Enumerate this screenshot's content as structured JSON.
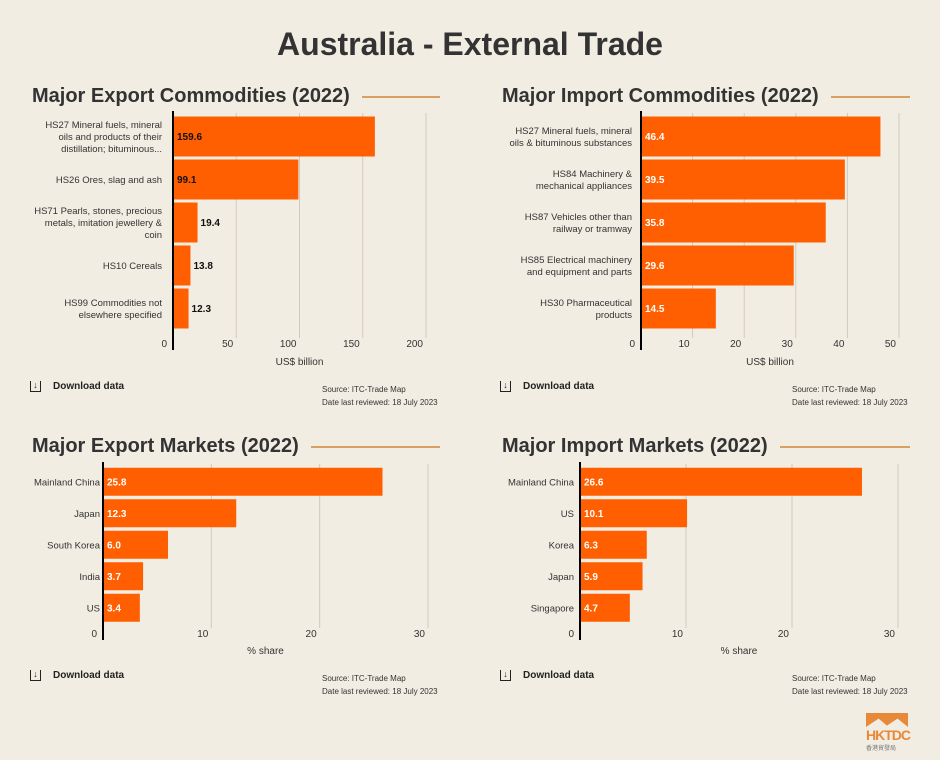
{
  "title": "Australia - External Trade",
  "download_label": "Download data",
  "source": "Source: ITC-Trade Map",
  "reviewed": "Date last reviewed: 18 July 2023",
  "logo": {
    "text": "HKTDC",
    "chinese": "香港貿發局"
  },
  "colors": {
    "bar": "#ff5f00",
    "grid": "#cfcac0",
    "axis": "#000000"
  },
  "chart_data": [
    {
      "type": "bar",
      "title": "Major Export Commodities (2022)",
      "xlabel": "US$ billion",
      "xlim": [
        0,
        200
      ],
      "ticks": [
        0,
        50,
        100,
        150,
        200
      ],
      "categories": [
        [
          "HS27 Mineral fuels, mineral",
          "oils and products of their",
          "distillation; bituminous..."
        ],
        [
          "HS26 Ores, slag and ash"
        ],
        [
          "HS71 Pearls, stones, precious",
          "metals, imitation jewellery &",
          "coin"
        ],
        [
          "HS10 Cereals"
        ],
        [
          "HS99 Commodities not",
          "elsewhere specified"
        ]
      ],
      "values": [
        159.6,
        99.1,
        19.4,
        13.8,
        12.3
      ],
      "labels": [
        "159.6",
        "99.1",
        "19.4",
        "13.8",
        "12.3"
      ],
      "label_color": "#111111"
    },
    {
      "type": "bar",
      "title": "Major Import Commodities (2022)",
      "xlabel": "US$ billion",
      "xlim": [
        0,
        50
      ],
      "ticks": [
        0,
        10,
        20,
        30,
        40,
        50
      ],
      "categories": [
        [
          "HS27 Mineral fuels, mineral",
          "oils & bituminous substances"
        ],
        [
          "HS84 Machinery &",
          "mechanical appliances"
        ],
        [
          "HS87 Vehicles other than",
          "railway or tramway"
        ],
        [
          "HS85 Electrical machinery",
          "and equipment and parts"
        ],
        [
          "HS30 Pharmaceutical",
          "products"
        ]
      ],
      "values": [
        46.4,
        39.5,
        35.8,
        29.6,
        14.5
      ],
      "labels": [
        "46.4",
        "39.5",
        "35.8",
        "29.6",
        "14.5"
      ],
      "label_color": "#ffffff"
    },
    {
      "type": "bar",
      "title": "Major Export Markets (2022)",
      "xlabel": "% share",
      "xlim": [
        0,
        30
      ],
      "ticks": [
        0,
        10,
        20,
        30
      ],
      "categories": [
        [
          "Mainland China"
        ],
        [
          "Japan"
        ],
        [
          "South Korea"
        ],
        [
          "India"
        ],
        [
          "US"
        ]
      ],
      "values": [
        25.8,
        12.3,
        6.0,
        3.7,
        3.4
      ],
      "labels": [
        "25.8",
        "12.3",
        "6.0",
        "3.7",
        "3.4"
      ],
      "label_color": "#ffffff"
    },
    {
      "type": "bar",
      "title": "Major Import Markets (2022)",
      "xlabel": "% share",
      "xlim": [
        0,
        30
      ],
      "ticks": [
        0,
        10,
        20,
        30
      ],
      "categories": [
        [
          "Mainland China"
        ],
        [
          "US"
        ],
        [
          "Korea"
        ],
        [
          "Japan"
        ],
        [
          "Singapore"
        ]
      ],
      "values": [
        26.6,
        10.1,
        6.3,
        5.9,
        4.7
      ],
      "labels": [
        "26.6",
        "10.1",
        "6.3",
        "5.9",
        "4.7"
      ],
      "label_color": "#ffffff"
    }
  ]
}
